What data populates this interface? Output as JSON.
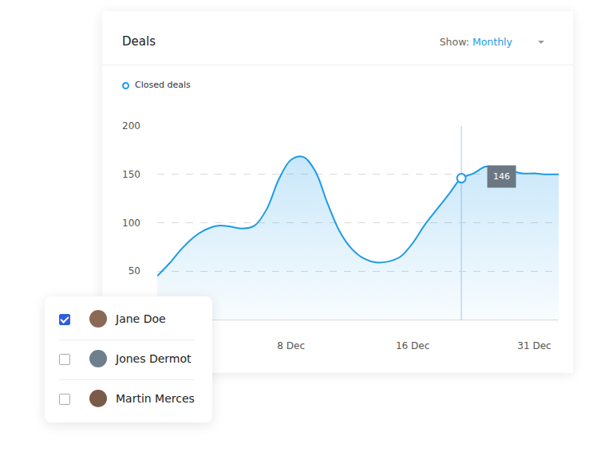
{
  "card": {
    "title": "Deals",
    "filter_label": "Show:",
    "filter_value": "Monthly"
  },
  "chart_data": {
    "type": "line",
    "categories": [
      null,
      null,
      null,
      null,
      null,
      null,
      null,
      null,
      null,
      null,
      null,
      "8 Dec",
      null,
      null,
      null,
      null,
      null,
      null,
      null,
      null,
      null,
      "16 Dec",
      null,
      null,
      null,
      null,
      null,
      null,
      null,
      null,
      null,
      "31 Dec",
      null,
      null
    ],
    "series": [
      {
        "name": "Closed deals",
        "color": "#1e9be9",
        "values": [
          45,
          58,
          73,
          85,
          93,
          97,
          96,
          94,
          97,
          114,
          145,
          165,
          168,
          153,
          120,
          91,
          73,
          63,
          59,
          60,
          65,
          79,
          98,
          114,
          130,
          146,
          151,
          158,
          157,
          154,
          151,
          151,
          150,
          150
        ]
      }
    ],
    "ylim": [
      0,
      200
    ],
    "yticks": [
      50,
      100,
      150,
      200
    ],
    "grid": true,
    "annotations": [
      {
        "x": 25,
        "text": "146"
      }
    ]
  },
  "people": [
    {
      "name": "Jane Doe",
      "checked": true
    },
    {
      "name": "Jones Dermot",
      "checked": false
    },
    {
      "name": "Martin Merces",
      "checked": false
    }
  ]
}
